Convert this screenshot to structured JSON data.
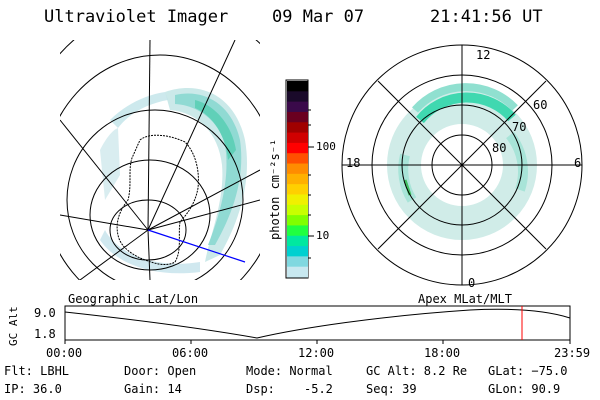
{
  "header": {
    "instrument": "Ultraviolet Imager",
    "date": "09 Mar 07",
    "time": "21:41:56 UT"
  },
  "colorbar": {
    "unit_label": "photon cm⁻²s⁻¹",
    "ticks": [
      "100",
      "10"
    ],
    "colors": [
      "#000000",
      "#1a0a2a",
      "#3a0a4a",
      "#6a0020",
      "#a00000",
      "#d00000",
      "#ff0000",
      "#ff5000",
      "#ff8c00",
      "#ffb000",
      "#ffd000",
      "#f0f000",
      "#c8ff00",
      "#80ff00",
      "#20ff40",
      "#00e8a0",
      "#00d0d0",
      "#80d8e0",
      "#c8e8f0"
    ]
  },
  "left_map": {
    "label": "Geographic Lat/Lon"
  },
  "right_map": {
    "label": "Apex MLat/MLT",
    "mlt_labels": {
      "top": "12",
      "left": "18",
      "right": "6",
      "bottom": "0"
    },
    "lat_labels": [
      "60",
      "70",
      "80"
    ]
  },
  "altitude_plot": {
    "ylabel": "GC Alt",
    "yticks": [
      "9.0",
      "1.8"
    ],
    "xticks": [
      "00:00",
      "06:00",
      "12:00",
      "18:00",
      "23:59"
    ]
  },
  "info": {
    "flt": "Flt: LBHL",
    "ip": "IP: 36.0",
    "door": "Door: Open",
    "gain": "Gain: 14",
    "mode": "Mode: Normal",
    "dsp": "Dsp:",
    "dsp_val": "-5.2",
    "gcalt": "GC Alt: 8.2 Re",
    "seq": "Seq: 39",
    "glat": "GLat: −75.0",
    "glon": "GLon:  90.9"
  }
}
